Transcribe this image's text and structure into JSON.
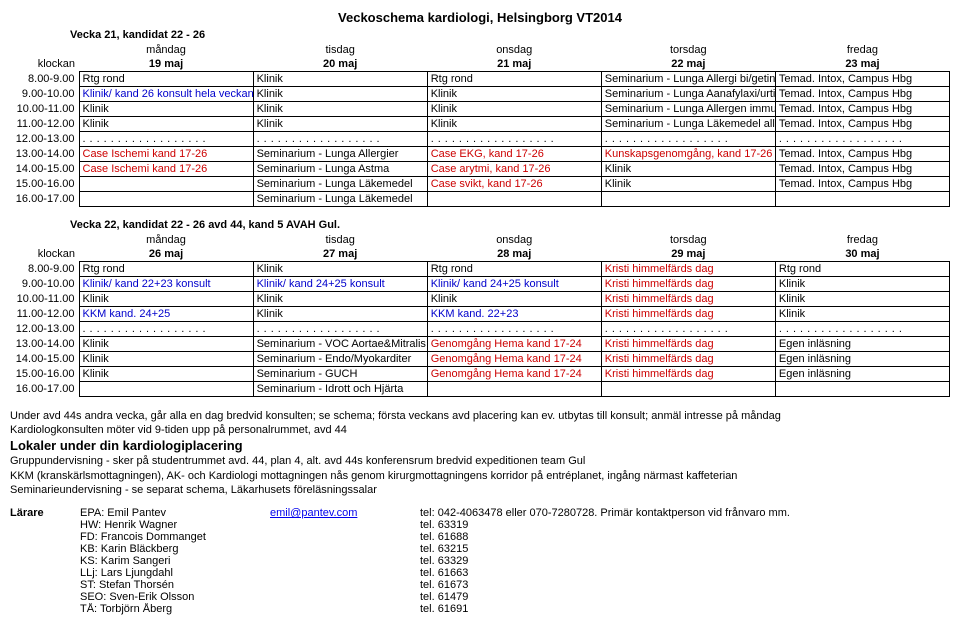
{
  "title": "Veckoschema kardiologi, Helsingborg VT2014",
  "week1": {
    "header": "Vecka 21, kandidat 22 - 26",
    "klockan": "klockan",
    "days": [
      "måndag",
      "tisdag",
      "onsdag",
      "torsdag",
      "fredag"
    ],
    "dates": [
      "19 maj",
      "20 maj",
      "21 maj",
      "22 maj",
      "23 maj"
    ],
    "rows": [
      {
        "time": "8.00-9.00",
        "cells": [
          "Rtg rond",
          "Klinik",
          "Rtg rond",
          "Seminarium - Lunga Allergi bi/getin",
          "Temad. Intox, Campus Hbg"
        ],
        "classes": [
          "",
          "",
          "",
          "",
          ""
        ]
      },
      {
        "time": "9.00-10.00",
        "cells": [
          "Klinik/ kand 26 konsult hela veckan",
          "Klinik",
          "Klinik",
          "Seminarium - Lunga Aanafylaxi/urti",
          "Temad. Intox, Campus Hbg"
        ],
        "classes": [
          "blue",
          "",
          "",
          "",
          ""
        ]
      },
      {
        "time": "10.00-11.00",
        "cells": [
          "Klinik",
          "Klinik",
          "Klinik",
          "Seminarium - Lunga Allergen immu",
          "Temad. Intox, Campus Hbg"
        ],
        "classes": [
          "",
          "",
          "",
          "",
          ""
        ]
      },
      {
        "time": "11.00-12.00",
        "cells": [
          "Klinik",
          "Klinik",
          "Klinik",
          "Seminarium - Lunga Läkemedel all",
          "Temad. Intox, Campus Hbg"
        ],
        "classes": [
          "",
          "",
          "",
          "",
          ""
        ]
      },
      {
        "time": "12.00-13.00",
        "dots": true
      },
      {
        "time": "13.00-14.00",
        "cells": [
          "Case Ischemi kand 17-26",
          "Seminarium - Lunga Allergier",
          "Case EKG, kand 17-26",
          "Kunskapsgenomgång, kand 17-26",
          "Temad. Intox, Campus Hbg"
        ],
        "classes": [
          "red",
          "",
          "red",
          "red",
          ""
        ]
      },
      {
        "time": "14.00-15.00",
        "cells": [
          "Case Ischemi kand 17-26",
          "Seminarium - Lunga Astma",
          "Case arytmi, kand 17-26",
          "Klinik",
          "Temad. Intox, Campus Hbg"
        ],
        "classes": [
          "red",
          "",
          "red",
          "",
          ""
        ]
      },
      {
        "time": "15.00-16.00",
        "cells": [
          "",
          "Seminarium - Lunga Läkemedel",
          "Case svikt, kand 17-26",
          "Klinik",
          "Temad. Intox, Campus Hbg"
        ],
        "classes": [
          "",
          "",
          "red",
          "",
          ""
        ]
      },
      {
        "time": "16.00-17.00",
        "cells": [
          "",
          "Seminarium - Lunga Läkemedel",
          "",
          "",
          ""
        ],
        "classes": [
          "",
          "",
          "",
          "",
          ""
        ]
      }
    ]
  },
  "week2": {
    "header": "Vecka 22, kandidat 22 - 26 avd 44, kand 5 AVAH Gul.",
    "klockan": "klockan",
    "days": [
      "måndag",
      "tisdag",
      "onsdag",
      "torsdag",
      "fredag"
    ],
    "dates": [
      "26 maj",
      "27 maj",
      "28 maj",
      "29 maj",
      "30 maj"
    ],
    "rows": [
      {
        "time": "8.00-9.00",
        "cells": [
          "Rtg rond",
          "Klinik",
          "Rtg rond",
          "Kristi himmelfärds dag",
          "Rtg rond"
        ],
        "classes": [
          "",
          "",
          "",
          "red",
          ""
        ]
      },
      {
        "time": "9.00-10.00",
        "cells": [
          "Klinik/ kand 22+23 konsult",
          "Klinik/ kand 24+25 konsult",
          "Klinik/ kand 24+25 konsult",
          "Kristi himmelfärds dag",
          "Klinik"
        ],
        "classes": [
          "blue",
          "blue",
          "blue",
          "red",
          ""
        ]
      },
      {
        "time": "10.00-11.00",
        "cells": [
          "Klinik",
          "Klinik",
          "Klinik",
          "Kristi himmelfärds dag",
          "Klinik"
        ],
        "classes": [
          "",
          "",
          "",
          "red",
          ""
        ]
      },
      {
        "time": "11.00-12.00",
        "cells": [
          "KKM kand. 24+25",
          "Klinik",
          "KKM kand. 22+23",
          "Kristi himmelfärds dag",
          "Klinik"
        ],
        "classes": [
          "blue",
          "",
          "blue",
          "red",
          ""
        ]
      },
      {
        "time": "12.00-13.00",
        "dots": true
      },
      {
        "time": "13.00-14.00",
        "cells": [
          "Klinik",
          "Seminarium - VOC Aortae&Mitralis",
          "Genomgång Hema kand 17-24",
          "Kristi himmelfärds dag",
          "Egen inläsning"
        ],
        "classes": [
          "",
          "",
          "red",
          "red",
          ""
        ]
      },
      {
        "time": "14.00-15.00",
        "cells": [
          "Klinik",
          "Seminarium - Endo/Myokarditer",
          "Genomgång Hema kand 17-24",
          "Kristi himmelfärds dag",
          "Egen inläsning"
        ],
        "classes": [
          "",
          "",
          "red",
          "red",
          ""
        ]
      },
      {
        "time": "15.00-16.00",
        "cells": [
          "Klinik",
          "Seminarium - GUCH",
          "Genomgång Hema kand 17-24",
          "Kristi himmelfärds dag",
          "Egen inläsning"
        ],
        "classes": [
          "",
          "",
          "red",
          "red",
          ""
        ]
      },
      {
        "time": "16.00-17.00",
        "cells": [
          "",
          "Seminarium - Idrott och Hjärta",
          "",
          "",
          ""
        ],
        "classes": [
          "",
          "",
          "",
          "",
          ""
        ]
      }
    ]
  },
  "notes": {
    "line1": "Under avd 44s andra vecka, går alla en dag bredvid konsulten; se schema; första veckans avd placering kan ev. utbytas till konsult; anmäl intresse på måndag",
    "line2": "Kardiologkonsulten möter vid 9-tiden upp på personalrummet, avd 44",
    "heading": "Lokaler under din kardiologiplacering",
    "line3": "Gruppundervisning - sker på studentrummet avd. 44, plan 4, alt. avd 44s konferensrum bredvid expeditionen team Gul",
    "line4": "KKM (kranskärlsmottagningen), AK- och Kardiologi mottagningen nås genom kirurgmottagningens korridor på entréplanet, ingång närmast kaffeterian",
    "line5": "Seminarieundervisning - se separat schema, Läkarhusets föreläsningssalar"
  },
  "larare": {
    "label": "Lärare",
    "rows": [
      {
        "name": "EPA: Emil Pantev",
        "email": "emil@pantev.com",
        "tel": "tel: 042-4063478 eller 070-7280728. Primär kontaktperson vid frånvaro mm."
      },
      {
        "name": "HW: Henrik Wagner",
        "email": "",
        "tel": "tel. 63319"
      },
      {
        "name": "FD: Francois Dommanget",
        "email": "",
        "tel": "tel. 61688"
      },
      {
        "name": "KB: Karin Bläckberg",
        "email": "",
        "tel": "tel. 63215"
      },
      {
        "name": "KS: Karim Sangeri",
        "email": "",
        "tel": "tel. 63329"
      },
      {
        "name": "LLj: Lars Ljungdahl",
        "email": "",
        "tel": "tel. 61663"
      },
      {
        "name": "ST: Stefan Thorsén",
        "email": "",
        "tel": "tel. 61673"
      },
      {
        "name": "SEO: Sven-Erik Olsson",
        "email": "",
        "tel": "tel. 61479"
      },
      {
        "name": "TÅ: Torbjörn Åberg",
        "email": "",
        "tel": "tel. 61691"
      }
    ]
  }
}
